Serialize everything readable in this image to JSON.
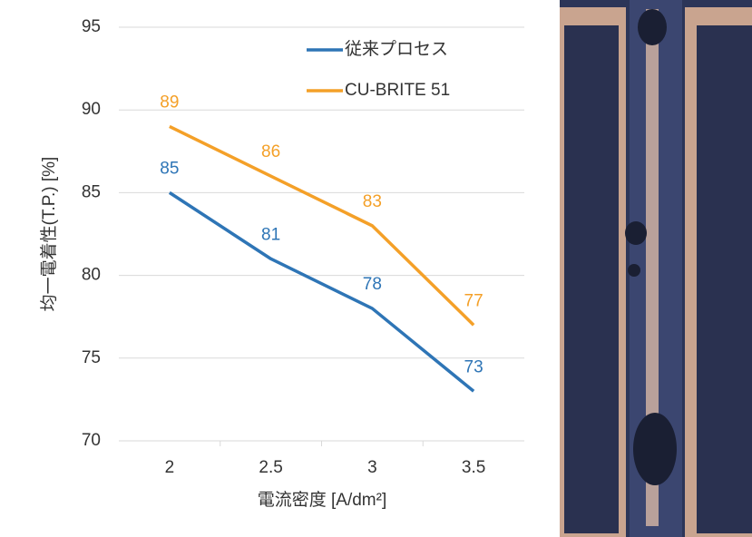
{
  "chart_data": {
    "type": "line",
    "xlabel": "電流密度 [A/dm²]",
    "ylabel": "均一電着性(T.P.) [%]",
    "categories": [
      "2",
      "2.5",
      "3",
      "3.5"
    ],
    "series": [
      {
        "name": "従来プロセス",
        "color": "#2e75b6",
        "values": [
          85,
          81,
          78,
          73
        ]
      },
      {
        "name": "CU-BRITE 51",
        "color": "#f4a028",
        "values": [
          89,
          86,
          83,
          77
        ]
      }
    ],
    "ylim": [
      70,
      95
    ],
    "yticks": [
      70,
      75,
      80,
      85,
      90,
      95
    ],
    "grid": true,
    "legend": "top-right"
  }
}
